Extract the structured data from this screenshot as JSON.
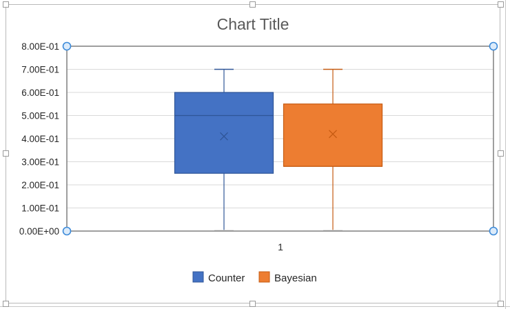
{
  "chart_data": {
    "type": "box",
    "title": "Chart Title",
    "categories": [
      "1"
    ],
    "ylim": [
      0,
      0.8
    ],
    "yticks": [
      "0.00E+00",
      "1.00E-01",
      "2.00E-01",
      "3.00E-01",
      "4.00E-01",
      "5.00E-01",
      "6.00E-01",
      "7.00E-01",
      "8.00E-01"
    ],
    "grid": true,
    "legend_position": "bottom",
    "series": [
      {
        "name": "Counter",
        "color": "#4472C4",
        "edge_color": "#2F5597",
        "min": 0.0,
        "q1": 0.25,
        "median": 0.5,
        "q3": 0.6,
        "max": 0.7,
        "mean": 0.41
      },
      {
        "name": "Bayesian",
        "color": "#ED7D31",
        "edge_color": "#C55A11",
        "min": 0.0,
        "q1": 0.28,
        "median": 0.28,
        "q3": 0.55,
        "max": 0.7,
        "mean": 0.42
      }
    ]
  }
}
